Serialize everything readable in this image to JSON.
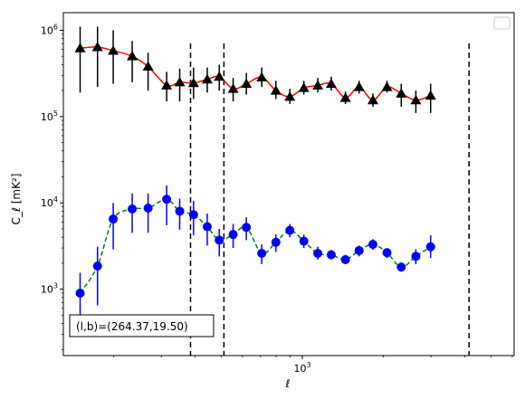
{
  "chart_data": {
    "type": "scatter",
    "title": "",
    "xlabel": "ℓ",
    "ylabel": "C_ℓ  [mK²]",
    "xscale": "log",
    "yscale": "log",
    "xlim": [
      130,
      6100
    ],
    "ylim": [
      170,
      1600000
    ],
    "grid": false,
    "legend": {
      "placement": "top-right",
      "entries": []
    },
    "x_ticks": [
      {
        "value": 1000,
        "label": "10^3"
      }
    ],
    "y_ticks": [
      {
        "value": 1000,
        "label": "10^3"
      },
      {
        "value": 10000,
        "label": "10^4"
      },
      {
        "value": 100000,
        "label": "10^5"
      },
      {
        "value": 1000000,
        "label": "10^6"
      }
    ],
    "vlines": [
      385,
      512,
      4150
    ],
    "annotation": "(l,b)=(264.37,19.50)",
    "series": [
      {
        "marker": "triangle",
        "marker_color": "#000000",
        "line_color": "#ff0000",
        "line_style": "solid",
        "points": [
          {
            "x": 150,
            "y": 620000,
            "lo": 190000,
            "hi": 1100000
          },
          {
            "x": 174,
            "y": 640000,
            "lo": 220000,
            "hi": 1100000
          },
          {
            "x": 199,
            "y": 580000,
            "lo": 240000,
            "hi": 1000000
          },
          {
            "x": 234,
            "y": 500000,
            "lo": 250000,
            "hi": 750000
          },
          {
            "x": 268,
            "y": 380000,
            "lo": 200000,
            "hi": 550000
          },
          {
            "x": 314,
            "y": 230000,
            "lo": 150000,
            "hi": 330000
          },
          {
            "x": 351,
            "y": 250000,
            "lo": 150000,
            "hi": 360000
          },
          {
            "x": 395,
            "y": 245000,
            "lo": 160000,
            "hi": 370000
          },
          {
            "x": 444,
            "y": 270000,
            "lo": 190000,
            "hi": 370000
          },
          {
            "x": 492,
            "y": 290000,
            "lo": 200000,
            "hi": 400000
          },
          {
            "x": 554,
            "y": 210000,
            "lo": 150000,
            "hi": 280000
          },
          {
            "x": 620,
            "y": 240000,
            "lo": 180000,
            "hi": 320000
          },
          {
            "x": 707,
            "y": 285000,
            "lo": 220000,
            "hi": 370000
          },
          {
            "x": 798,
            "y": 200000,
            "lo": 160000,
            "hi": 260000
          },
          {
            "x": 899,
            "y": 170000,
            "lo": 140000,
            "hi": 210000
          },
          {
            "x": 1013,
            "y": 215000,
            "lo": 180000,
            "hi": 260000
          },
          {
            "x": 1141,
            "y": 230000,
            "lo": 190000,
            "hi": 280000
          },
          {
            "x": 1280,
            "y": 240000,
            "lo": 200000,
            "hi": 290000
          },
          {
            "x": 1445,
            "y": 165000,
            "lo": 140000,
            "hi": 195000
          },
          {
            "x": 1624,
            "y": 220000,
            "lo": 185000,
            "hi": 260000
          },
          {
            "x": 1827,
            "y": 155000,
            "lo": 130000,
            "hi": 185000
          },
          {
            "x": 2060,
            "y": 220000,
            "lo": 190000,
            "hi": 260000
          },
          {
            "x": 2327,
            "y": 185000,
            "lo": 130000,
            "hi": 240000
          },
          {
            "x": 2636,
            "y": 155000,
            "lo": 110000,
            "hi": 200000
          },
          {
            "x": 2990,
            "y": 175000,
            "lo": 110000,
            "hi": 240000
          }
        ]
      },
      {
        "marker": "circle",
        "marker_color": "#0000ff",
        "line_color": "#008000",
        "line_style": "dashed",
        "points": [
          {
            "x": 150,
            "y": 900,
            "lo": 400,
            "hi": 1550
          },
          {
            "x": 174,
            "y": 1850,
            "lo": 650,
            "hi": 3100
          },
          {
            "x": 199,
            "y": 6500,
            "lo": 2900,
            "hi": 10000
          },
          {
            "x": 234,
            "y": 8500,
            "lo": 4500,
            "hi": 12800
          },
          {
            "x": 268,
            "y": 8700,
            "lo": 4500,
            "hi": 12800
          },
          {
            "x": 314,
            "y": 11000,
            "lo": 5500,
            "hi": 16000
          },
          {
            "x": 351,
            "y": 8000,
            "lo": 4900,
            "hi": 11200
          },
          {
            "x": 395,
            "y": 7300,
            "lo": 4200,
            "hi": 10500
          },
          {
            "x": 444,
            "y": 5300,
            "lo": 3200,
            "hi": 7500
          },
          {
            "x": 492,
            "y": 3700,
            "lo": 2400,
            "hi": 5000
          },
          {
            "x": 554,
            "y": 4300,
            "lo": 3000,
            "hi": 5700
          },
          {
            "x": 620,
            "y": 5200,
            "lo": 3700,
            "hi": 6800
          },
          {
            "x": 707,
            "y": 2600,
            "lo": 1950,
            "hi": 3300
          },
          {
            "x": 798,
            "y": 3500,
            "lo": 2700,
            "hi": 4300
          },
          {
            "x": 899,
            "y": 4800,
            "lo": 4000,
            "hi": 5700
          },
          {
            "x": 1013,
            "y": 3600,
            "lo": 3000,
            "hi": 4300
          },
          {
            "x": 1141,
            "y": 2600,
            "lo": 2200,
            "hi": 3100
          },
          {
            "x": 1280,
            "y": 2500,
            "lo": 2200,
            "hi": 2850
          },
          {
            "x": 1445,
            "y": 2200,
            "lo": 1950,
            "hi": 2500
          },
          {
            "x": 1624,
            "y": 2800,
            "lo": 2400,
            "hi": 3200
          },
          {
            "x": 1827,
            "y": 3300,
            "lo": 2850,
            "hi": 3800
          },
          {
            "x": 2060,
            "y": 2650,
            "lo": 2300,
            "hi": 3000
          },
          {
            "x": 2327,
            "y": 1800,
            "lo": 1600,
            "hi": 2050
          },
          {
            "x": 2636,
            "y": 2400,
            "lo": 1950,
            "hi": 2900
          },
          {
            "x": 2990,
            "y": 3100,
            "lo": 2300,
            "hi": 4200
          }
        ]
      }
    ]
  }
}
